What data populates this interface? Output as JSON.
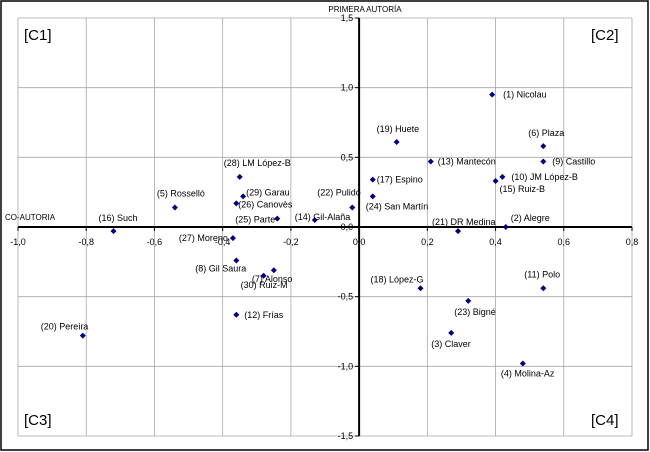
{
  "chart_data": {
    "type": "scatter",
    "x_axis_label": "CO-AUTORIA",
    "y_axis_label": "PRIMERA AUTORÍA",
    "xlim": [
      -1.0,
      0.8
    ],
    "ylim": [
      -1.5,
      1.5
    ],
    "x_ticks": [
      -1.0,
      -0.8,
      -0.6,
      -0.4,
      -0.2,
      0.0,
      0.2,
      0.4,
      0.6,
      0.8
    ],
    "x_tick_labels": [
      "-1,0",
      "-0,8",
      "-0,6",
      "-0,4",
      "-0,2",
      "0,0",
      "0,2",
      "0,4",
      "0,6",
      "0,8"
    ],
    "y_ticks": [
      1.5,
      1.0,
      0.5,
      0.0,
      -0.5,
      -1.0,
      -1.5
    ],
    "y_tick_labels": [
      "1,5",
      "1,0",
      "0,5",
      "0,0",
      "-0,5",
      "-1,0",
      "-1,5"
    ],
    "grid": true,
    "marker_color": "#00007f",
    "quadrants": [
      "[C1]",
      "[C2]",
      "[C3]",
      "[C4]"
    ],
    "points": [
      {
        "label": "(1) Nicolau",
        "x": 0.39,
        "y": 0.95
      },
      {
        "label": "(2) Alegre",
        "x": 0.43,
        "y": 0.0
      },
      {
        "label": "(3) Claver",
        "x": 0.27,
        "y": -0.76
      },
      {
        "label": "(4) Molina-Az",
        "x": 0.48,
        "y": -0.98
      },
      {
        "label": "(5) Rosselló",
        "x": -0.54,
        "y": 0.14
      },
      {
        "label": "(6) Plaza",
        "x": 0.54,
        "y": 0.58
      },
      {
        "label": "(7) Alonso",
        "x": -0.25,
        "y": -0.31
      },
      {
        "label": "(8) Gil Saura",
        "x": -0.36,
        "y": -0.24
      },
      {
        "label": "(9) Castillo",
        "x": 0.54,
        "y": 0.47
      },
      {
        "label": "(10) JM López-B",
        "x": 0.42,
        "y": 0.36
      },
      {
        "label": "(11) Polo",
        "x": 0.54,
        "y": -0.44
      },
      {
        "label": "(12) Frías",
        "x": -0.36,
        "y": -0.63
      },
      {
        "label": "(13) Mantecón",
        "x": 0.21,
        "y": 0.47
      },
      {
        "label": "(14) Gil-Alaña",
        "x": -0.13,
        "y": 0.05
      },
      {
        "label": "(15) Ruiz-B",
        "x": 0.4,
        "y": 0.33
      },
      {
        "label": "(16) Such",
        "x": -0.72,
        "y": -0.03
      },
      {
        "label": "(17) Espino",
        "x": 0.04,
        "y": 0.34
      },
      {
        "label": "(18) López-G",
        "x": 0.18,
        "y": -0.44
      },
      {
        "label": "(19) Huete",
        "x": 0.11,
        "y": 0.61
      },
      {
        "label": "(20) Pereira",
        "x": -0.81,
        "y": -0.78
      },
      {
        "label": "(21) DR Medina",
        "x": 0.29,
        "y": -0.03
      },
      {
        "label": "(22) Pulido",
        "x": -0.02,
        "y": 0.14
      },
      {
        "label": "(23) Bigné",
        "x": 0.32,
        "y": -0.53
      },
      {
        "label": "(24) San Martín",
        "x": 0.04,
        "y": 0.22
      },
      {
        "label": "(25) Parte",
        "x": -0.24,
        "y": 0.06
      },
      {
        "label": "(26) Canovès",
        "x": -0.36,
        "y": 0.17
      },
      {
        "label": "(27) Moreno",
        "x": -0.37,
        "y": -0.08
      },
      {
        "label": "(28) LM López-B",
        "x": -0.35,
        "y": 0.36
      },
      {
        "label": "(29) Garau",
        "x": -0.34,
        "y": 0.22
      },
      {
        "label": "(30) Ruiz-M",
        "x": -0.28,
        "y": -0.35
      }
    ]
  }
}
